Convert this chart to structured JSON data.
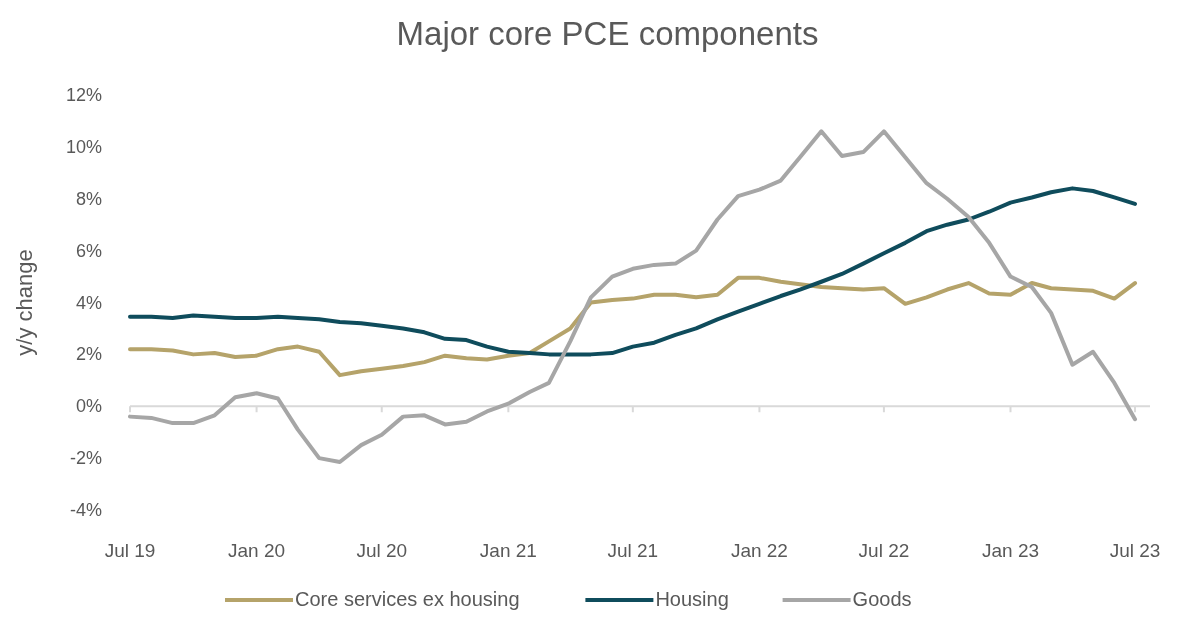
{
  "chart_data": {
    "type": "line",
    "title": "Major core PCE components",
    "ylabel": "y/y change",
    "x": [
      "2019-07",
      "2019-08",
      "2019-09",
      "2019-10",
      "2019-11",
      "2019-12",
      "2020-01",
      "2020-02",
      "2020-03",
      "2020-04",
      "2020-05",
      "2020-06",
      "2020-07",
      "2020-08",
      "2020-09",
      "2020-10",
      "2020-11",
      "2020-12",
      "2021-01",
      "2021-02",
      "2021-03",
      "2021-04",
      "2021-05",
      "2021-06",
      "2021-07",
      "2021-08",
      "2021-09",
      "2021-10",
      "2021-11",
      "2021-12",
      "2022-01",
      "2022-02",
      "2022-03",
      "2022-04",
      "2022-05",
      "2022-06",
      "2022-07",
      "2022-08",
      "2022-09",
      "2022-10",
      "2022-11",
      "2022-12",
      "2023-01",
      "2023-02",
      "2023-03",
      "2023-04",
      "2023-05",
      "2023-06",
      "2023-07"
    ],
    "series": [
      {
        "name": "Core services ex housing",
        "color": "#b5a36a",
        "values": [
          2.2,
          2.2,
          2.15,
          2.0,
          2.05,
          1.9,
          1.95,
          2.2,
          2.3,
          2.1,
          1.2,
          1.35,
          1.45,
          1.55,
          1.7,
          1.95,
          1.85,
          1.8,
          1.95,
          2.05,
          2.5,
          3.0,
          4.0,
          4.1,
          4.15,
          4.3,
          4.3,
          4.2,
          4.3,
          4.95,
          4.95,
          4.8,
          4.7,
          4.6,
          4.55,
          4.5,
          4.55,
          3.95,
          4.2,
          4.5,
          4.75,
          4.35,
          4.3,
          4.75,
          4.55,
          4.5,
          4.45,
          4.15,
          4.75
        ]
      },
      {
        "name": "Housing",
        "color": "#0f4c5c",
        "values": [
          3.45,
          3.45,
          3.4,
          3.5,
          3.45,
          3.4,
          3.4,
          3.45,
          3.4,
          3.35,
          3.25,
          3.2,
          3.1,
          3.0,
          2.85,
          2.6,
          2.55,
          2.3,
          2.1,
          2.05,
          2.0,
          2.0,
          2.0,
          2.05,
          2.3,
          2.45,
          2.75,
          3.0,
          3.35,
          3.65,
          3.95,
          4.25,
          4.5,
          4.8,
          5.1,
          5.5,
          5.9,
          6.3,
          6.75,
          7.0,
          7.2,
          7.5,
          7.85,
          8.05,
          8.25,
          8.4,
          8.3,
          8.05,
          7.8
        ]
      },
      {
        "name": "Goods",
        "color": "#a6a6a6",
        "values": [
          -0.4,
          -0.45,
          -0.65,
          -0.65,
          -0.35,
          0.35,
          0.5,
          0.3,
          -0.9,
          -2.0,
          -2.15,
          -1.5,
          -1.1,
          -0.4,
          -0.35,
          -0.7,
          -0.6,
          -0.2,
          0.1,
          0.55,
          0.9,
          2.5,
          4.2,
          5.0,
          5.3,
          5.45,
          5.5,
          6.0,
          7.2,
          8.1,
          8.35,
          8.7,
          9.6,
          10.6,
          9.65,
          9.8,
          10.6,
          9.6,
          8.6,
          8.0,
          7.3,
          6.3,
          5.0,
          4.6,
          3.6,
          1.6,
          2.1,
          0.9,
          -0.5
        ]
      }
    ],
    "xlim": [
      "2019-07",
      "2023-07"
    ],
    "xticks": [
      {
        "value": "2019-07",
        "label": "Jul 19"
      },
      {
        "value": "2020-01",
        "label": "Jan 20"
      },
      {
        "value": "2020-07",
        "label": "Jul 20"
      },
      {
        "value": "2021-01",
        "label": "Jan 21"
      },
      {
        "value": "2021-07",
        "label": "Jul 21"
      },
      {
        "value": "2022-01",
        "label": "Jan 22"
      },
      {
        "value": "2022-07",
        "label": "Jul 22"
      },
      {
        "value": "2023-01",
        "label": "Jan 23"
      },
      {
        "value": "2023-07",
        "label": "Jul 23"
      }
    ],
    "ylim": [
      -4,
      12
    ],
    "yticks": [
      {
        "value": -4,
        "label": "-4%"
      },
      {
        "value": -2,
        "label": "-2%"
      },
      {
        "value": 0,
        "label": "0%"
      },
      {
        "value": 2,
        "label": "2%"
      },
      {
        "value": 4,
        "label": "4%"
      },
      {
        "value": 6,
        "label": "6%"
      },
      {
        "value": 8,
        "label": "8%"
      },
      {
        "value": 10,
        "label": "10%"
      },
      {
        "value": 12,
        "label": "12%"
      }
    ],
    "ref_lines": [
      {
        "axis": "y",
        "value": 0,
        "color": "#d9d9d9"
      }
    ],
    "grid": false,
    "legend": "bottom",
    "marker": "none",
    "line_style": "solid"
  }
}
